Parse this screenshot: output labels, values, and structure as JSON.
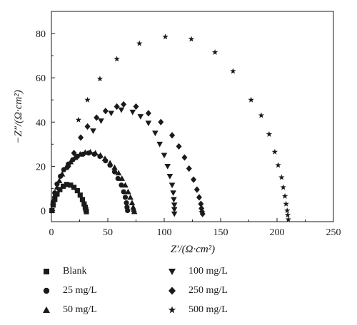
{
  "chart_data": {
    "type": "scatter",
    "xlabel": "Z′/(Ω·cm²)",
    "ylabel": "−Z″/(Ω·cm²)",
    "xlim": [
      0,
      250
    ],
    "ylim": [
      -5,
      90
    ],
    "xticks": [
      "0",
      "50",
      "100",
      "150",
      "200",
      "250"
    ],
    "yticks": [
      "0",
      "20",
      "40",
      "60",
      "80"
    ],
    "grid": false,
    "legend_position": "bottom",
    "series": [
      {
        "name": "Blank",
        "marker": "square",
        "x": [
          0.5,
          1.5,
          3,
          5,
          7.5,
          10.5,
          13.5,
          17,
          20,
          23,
          25.5,
          27.5,
          29,
          30,
          30.5,
          31
        ],
        "y": [
          0,
          2.5,
          5,
          7.5,
          9.5,
          11,
          11.8,
          11.5,
          10.5,
          9,
          7,
          5,
          3,
          1.5,
          0.5,
          -0.5
        ]
      },
      {
        "name": "25 mg/L",
        "marker": "circle",
        "x": [
          0.5,
          1.5,
          3,
          5,
          8,
          11,
          15,
          19,
          23,
          28,
          33,
          38,
          43,
          48,
          52,
          56,
          59,
          62,
          64,
          65.5,
          66.5,
          67,
          67.5
        ],
        "y": [
          0,
          4,
          8,
          12,
          15.5,
          18.5,
          21,
          23,
          24.5,
          25.5,
          26,
          25.5,
          24.5,
          22.5,
          20.5,
          17.5,
          14.5,
          11.5,
          8.5,
          6,
          3.5,
          1.5,
          0
        ]
      },
      {
        "name": "50 mg/L",
        "marker": "triangle-up",
        "x": [
          0.5,
          1.5,
          3,
          5,
          7,
          9.5,
          13,
          17,
          21,
          25.5,
          30,
          34.5,
          39,
          43.5,
          47.5,
          52,
          56,
          59.5,
          62.5,
          65.5,
          68,
          70,
          71.5,
          72.5,
          73,
          73.5
        ],
        "y": [
          0,
          3.5,
          7,
          10.5,
          13.5,
          16.5,
          19.5,
          22,
          24,
          25.5,
          26.3,
          26.5,
          26,
          25,
          23.5,
          21.5,
          19.5,
          17,
          14.5,
          11.5,
          8.5,
          6,
          3.5,
          1.5,
          0.5,
          -0.5
        ]
      },
      {
        "name": "100 mg/L",
        "marker": "triangle-down",
        "x": [
          37,
          44,
          53,
          62,
          72,
          79,
          86,
          92,
          96,
          100,
          103,
          105,
          107,
          108,
          108.5,
          109,
          109,
          109
        ],
        "y": [
          36,
          40.5,
          44,
          45.5,
          44.5,
          42.5,
          39.5,
          35,
          30,
          25,
          20,
          15.5,
          11.5,
          8,
          5,
          2.5,
          0.5,
          -1.5
        ]
      },
      {
        "name": "250 mg/L",
        "marker": "diamond",
        "x": [
          15,
          20,
          26,
          32,
          40,
          48,
          58,
          64,
          75,
          86,
          97,
          107,
          113,
          118,
          122,
          126,
          129,
          131,
          132.5,
          133,
          133.5,
          134
        ],
        "y": [
          20,
          26,
          33,
          38,
          42,
          45,
          47,
          48,
          47,
          44,
          40,
          34,
          29,
          24,
          19,
          14,
          9.5,
          6,
          3,
          1,
          -0.5,
          -1.5
        ]
      },
      {
        "name": "500 mg/L",
        "marker": "star",
        "x": [
          24,
          32,
          43,
          58,
          78,
          101,
          124,
          145,
          161,
          177,
          186,
          193,
          198,
          201,
          204,
          205.5,
          207,
          208,
          209,
          209.5,
          210
        ],
        "y": [
          41,
          50,
          59.5,
          68.5,
          75.5,
          78.5,
          77.5,
          71.5,
          63,
          50,
          43,
          34.5,
          26.5,
          20.5,
          15,
          10.5,
          6.5,
          3,
          0,
          -2,
          -4
        ]
      }
    ]
  }
}
